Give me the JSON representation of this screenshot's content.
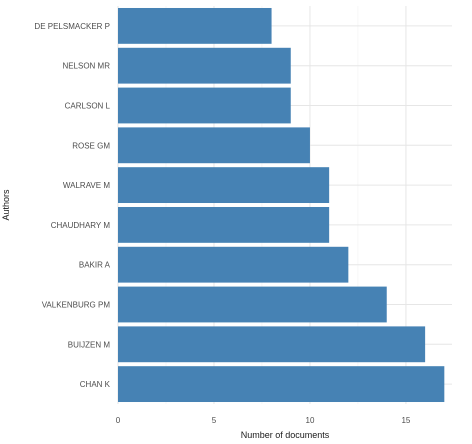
{
  "chart_data": {
    "type": "bar",
    "orientation": "horizontal",
    "categories": [
      "DE PELSMACKER P",
      "NELSON MR",
      "CARLSON L",
      "ROSE GM",
      "WALRAVE M",
      "CHAUDHARY M",
      "BAKIR A",
      "VALKENBURG PM",
      "BUIJZEN M",
      "CHAN K"
    ],
    "values": [
      8,
      9,
      9,
      10,
      11,
      11,
      12,
      14,
      16,
      17
    ],
    "xlabel": "Number of documents",
    "ylabel": "Authors",
    "xlim": [
      0,
      17.4
    ],
    "xticks": [
      0,
      5,
      10,
      15
    ],
    "xtick_labels": [
      "0",
      "5",
      "10",
      "15"
    ],
    "grid": true,
    "bar_color": "#4682B4"
  }
}
